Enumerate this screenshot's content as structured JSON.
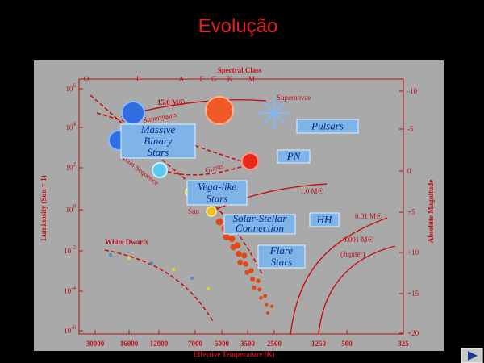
{
  "title": "Evolução",
  "diagram": {
    "top_axis": {
      "title": "Spectral Class",
      "labels": [
        "O",
        "B",
        "A",
        "F",
        "G",
        "K",
        "M"
      ]
    },
    "left_axis": {
      "title": "Luminosity (Sun = 1)",
      "ticks": [
        {
          "base": "10",
          "exp": "6"
        },
        {
          "base": "10",
          "exp": "4"
        },
        {
          "base": "10",
          "exp": "2"
        },
        {
          "base": "10",
          "exp": "0"
        },
        {
          "base": "10",
          "exp": "-2"
        },
        {
          "base": "10",
          "exp": "-4"
        },
        {
          "base": "10",
          "exp": "-6"
        }
      ]
    },
    "right_axis": {
      "title": "Absolute Magnitude",
      "ticks": [
        "-10",
        "-5",
        "0",
        "+5",
        "+10",
        "+15",
        "+20"
      ]
    },
    "bottom_axis": {
      "title": "Effective Temperature (K)",
      "ticks": [
        "30000",
        "16000",
        "12000",
        "7000",
        "5000",
        "3500",
        "2500",
        "1250",
        "500",
        "325"
      ]
    },
    "labels": {
      "massive_track": "15.0 M☉",
      "supergiants": "Supergiants",
      "supernovae": "Supernovae",
      "giants": "Giants",
      "main_sequence": "Main Sequence",
      "solar_track": "1.0 M☉",
      "sun": "Sun",
      "brown_dwarf": "0.01 M☉",
      "planet": "0.001 M☉",
      "jupiter": "(Jupiter)",
      "white_dwarfs": "White Dwarfs"
    },
    "boxes": {
      "massive_binary": [
        "Massive",
        "Binary",
        "Stars"
      ],
      "pulsars": [
        "Pulsars"
      ],
      "pn": [
        "PN"
      ],
      "vega_like": [
        "Vega-like",
        "Stars"
      ],
      "solar_stellar": [
        "Solar-Stellar",
        "Connection"
      ],
      "hh": [
        "HH"
      ],
      "flare": [
        "Flare",
        "Stars"
      ]
    }
  }
}
